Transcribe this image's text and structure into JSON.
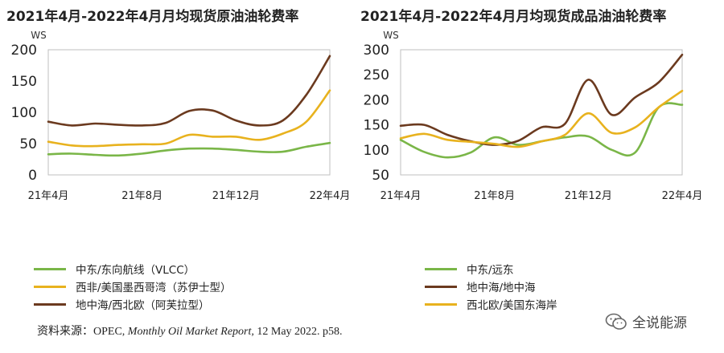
{
  "source_note": {
    "prefix": "资料来源：OPEC, ",
    "report_title": "Monthly Oil Market Report,",
    "suffix": " 12 May 2022. p58."
  },
  "watermark": {
    "text": "全说能源",
    "icon": "wechat-icon"
  },
  "chart_data": [
    {
      "type": "line",
      "title": "2021年4月-2022年4月月均现货原油油轮费率",
      "ylabel": "WS",
      "xlabel": "",
      "ylim": [
        0,
        200
      ],
      "yticks": [
        0,
        50,
        100,
        150,
        200
      ],
      "xlim": [
        0,
        12
      ],
      "xticks": [
        {
          "x": 0,
          "label": "21年4月"
        },
        {
          "x": 4,
          "label": "21年8月"
        },
        {
          "x": 8,
          "label": "21年12月"
        },
        {
          "x": 12,
          "label": "22年4月"
        }
      ],
      "grid": false,
      "legend_placement": "bottom",
      "series": [
        {
          "name": "中东/东向航线（VLCC）",
          "color": "#7ab648",
          "x": [
            0,
            1,
            2,
            3,
            4,
            5,
            6,
            7,
            8,
            9,
            10,
            11,
            12
          ],
          "values": [
            33,
            34,
            32,
            31,
            34,
            39,
            42,
            42,
            40,
            37,
            37,
            45,
            51
          ]
        },
        {
          "name": "西非/美国墨西哥湾（苏伊士型）",
          "color": "#e8b21e",
          "x": [
            0,
            1,
            2,
            3,
            4,
            5,
            6,
            7,
            8,
            9,
            10,
            11,
            12
          ],
          "values": [
            53,
            47,
            46,
            48,
            49,
            50,
            64,
            61,
            61,
            56,
            66,
            85,
            135
          ]
        },
        {
          "name": "地中海/西北欧（阿芙拉型）",
          "color": "#6b3a1f",
          "x": [
            0,
            1,
            2,
            3,
            4,
            5,
            6,
            7,
            8,
            9,
            10,
            11,
            12
          ],
          "values": [
            85,
            79,
            82,
            80,
            79,
            83,
            102,
            103,
            87,
            79,
            87,
            128,
            190
          ]
        }
      ]
    },
    {
      "type": "line",
      "title": "2021年4月-2022年4月月均现货成品油油轮费率",
      "ylabel": "WS",
      "xlabel": "",
      "ylim": [
        50,
        300
      ],
      "yticks": [
        50,
        100,
        150,
        200,
        250,
        300
      ],
      "xlim": [
        0,
        12
      ],
      "xticks": [
        {
          "x": 0,
          "label": "21年4月"
        },
        {
          "x": 4,
          "label": "21年8月"
        },
        {
          "x": 8,
          "label": "21年12月"
        },
        {
          "x": 12,
          "label": "22年4月"
        }
      ],
      "grid": false,
      "legend_placement": "bottom",
      "series": [
        {
          "name": "中东/远东",
          "color": "#7ab648",
          "x": [
            0,
            1,
            2,
            3,
            4,
            5,
            6,
            7,
            8,
            9,
            10,
            11,
            12
          ],
          "values": [
            120,
            96,
            85,
            95,
            125,
            110,
            117,
            125,
            127,
            100,
            95,
            185,
            190
          ]
        },
        {
          "name": "地中海/地中海",
          "color": "#6b3a1f",
          "x": [
            0,
            1,
            2,
            3,
            4,
            5,
            6,
            7,
            8,
            9,
            10,
            11,
            12
          ],
          "values": [
            148,
            150,
            130,
            117,
            110,
            118,
            145,
            152,
            240,
            170,
            205,
            235,
            290
          ]
        },
        {
          "name": "西北欧/美国东海岸",
          "color": "#e8b21e",
          "x": [
            0,
            1,
            2,
            3,
            4,
            5,
            6,
            7,
            8,
            9,
            10,
            11,
            12
          ],
          "values": [
            123,
            132,
            120,
            116,
            112,
            106,
            117,
            130,
            173,
            134,
            145,
            185,
            218
          ]
        }
      ]
    }
  ]
}
